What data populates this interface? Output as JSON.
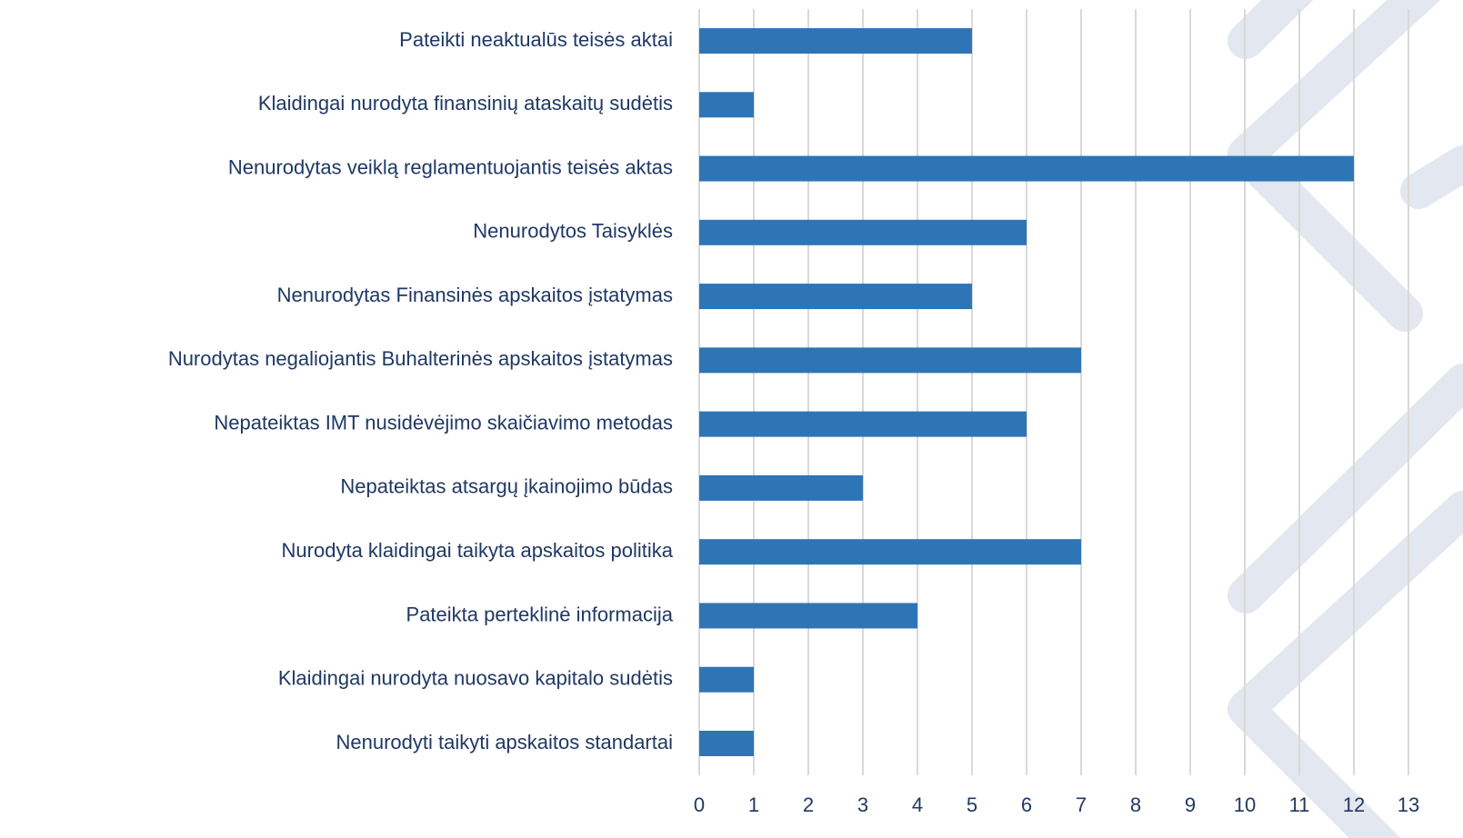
{
  "chart_data": {
    "type": "bar",
    "orientation": "horizontal",
    "categories": [
      "Pateikti neaktualūs teisės aktai",
      "Klaidingai nurodyta finansinių ataskaitų sudėtis",
      "Nenurodytas veiklą reglamentuojantis teisės aktas",
      "Nenurodytos Taisyklės",
      "Nenurodytas Finansinės apskaitos įstatymas",
      "Nurodytas negaliojantis Buhalterinės apskaitos įstatymas",
      "Nepateiktas IMT nusidėvėjimo skaičiavimo metodas",
      "Nepateiktas atsargų įkainojimo būdas",
      "Nurodyta klaidingai taikyta apskaitos politika",
      "Pateikta perteklinė informacija",
      "Klaidingai nurodyta nuosavo kapitalo sudėtis",
      "Nenurodyti taikyti apskaitos standartai"
    ],
    "values": [
      5,
      1,
      12,
      6,
      5,
      7,
      6,
      3,
      7,
      4,
      1,
      1
    ],
    "color": "#2e75b6",
    "xlim": [
      0,
      13
    ],
    "xticks": [
      0,
      1,
      2,
      3,
      4,
      5,
      6,
      7,
      8,
      9,
      10,
      11,
      12,
      13
    ],
    "grid": true
  }
}
